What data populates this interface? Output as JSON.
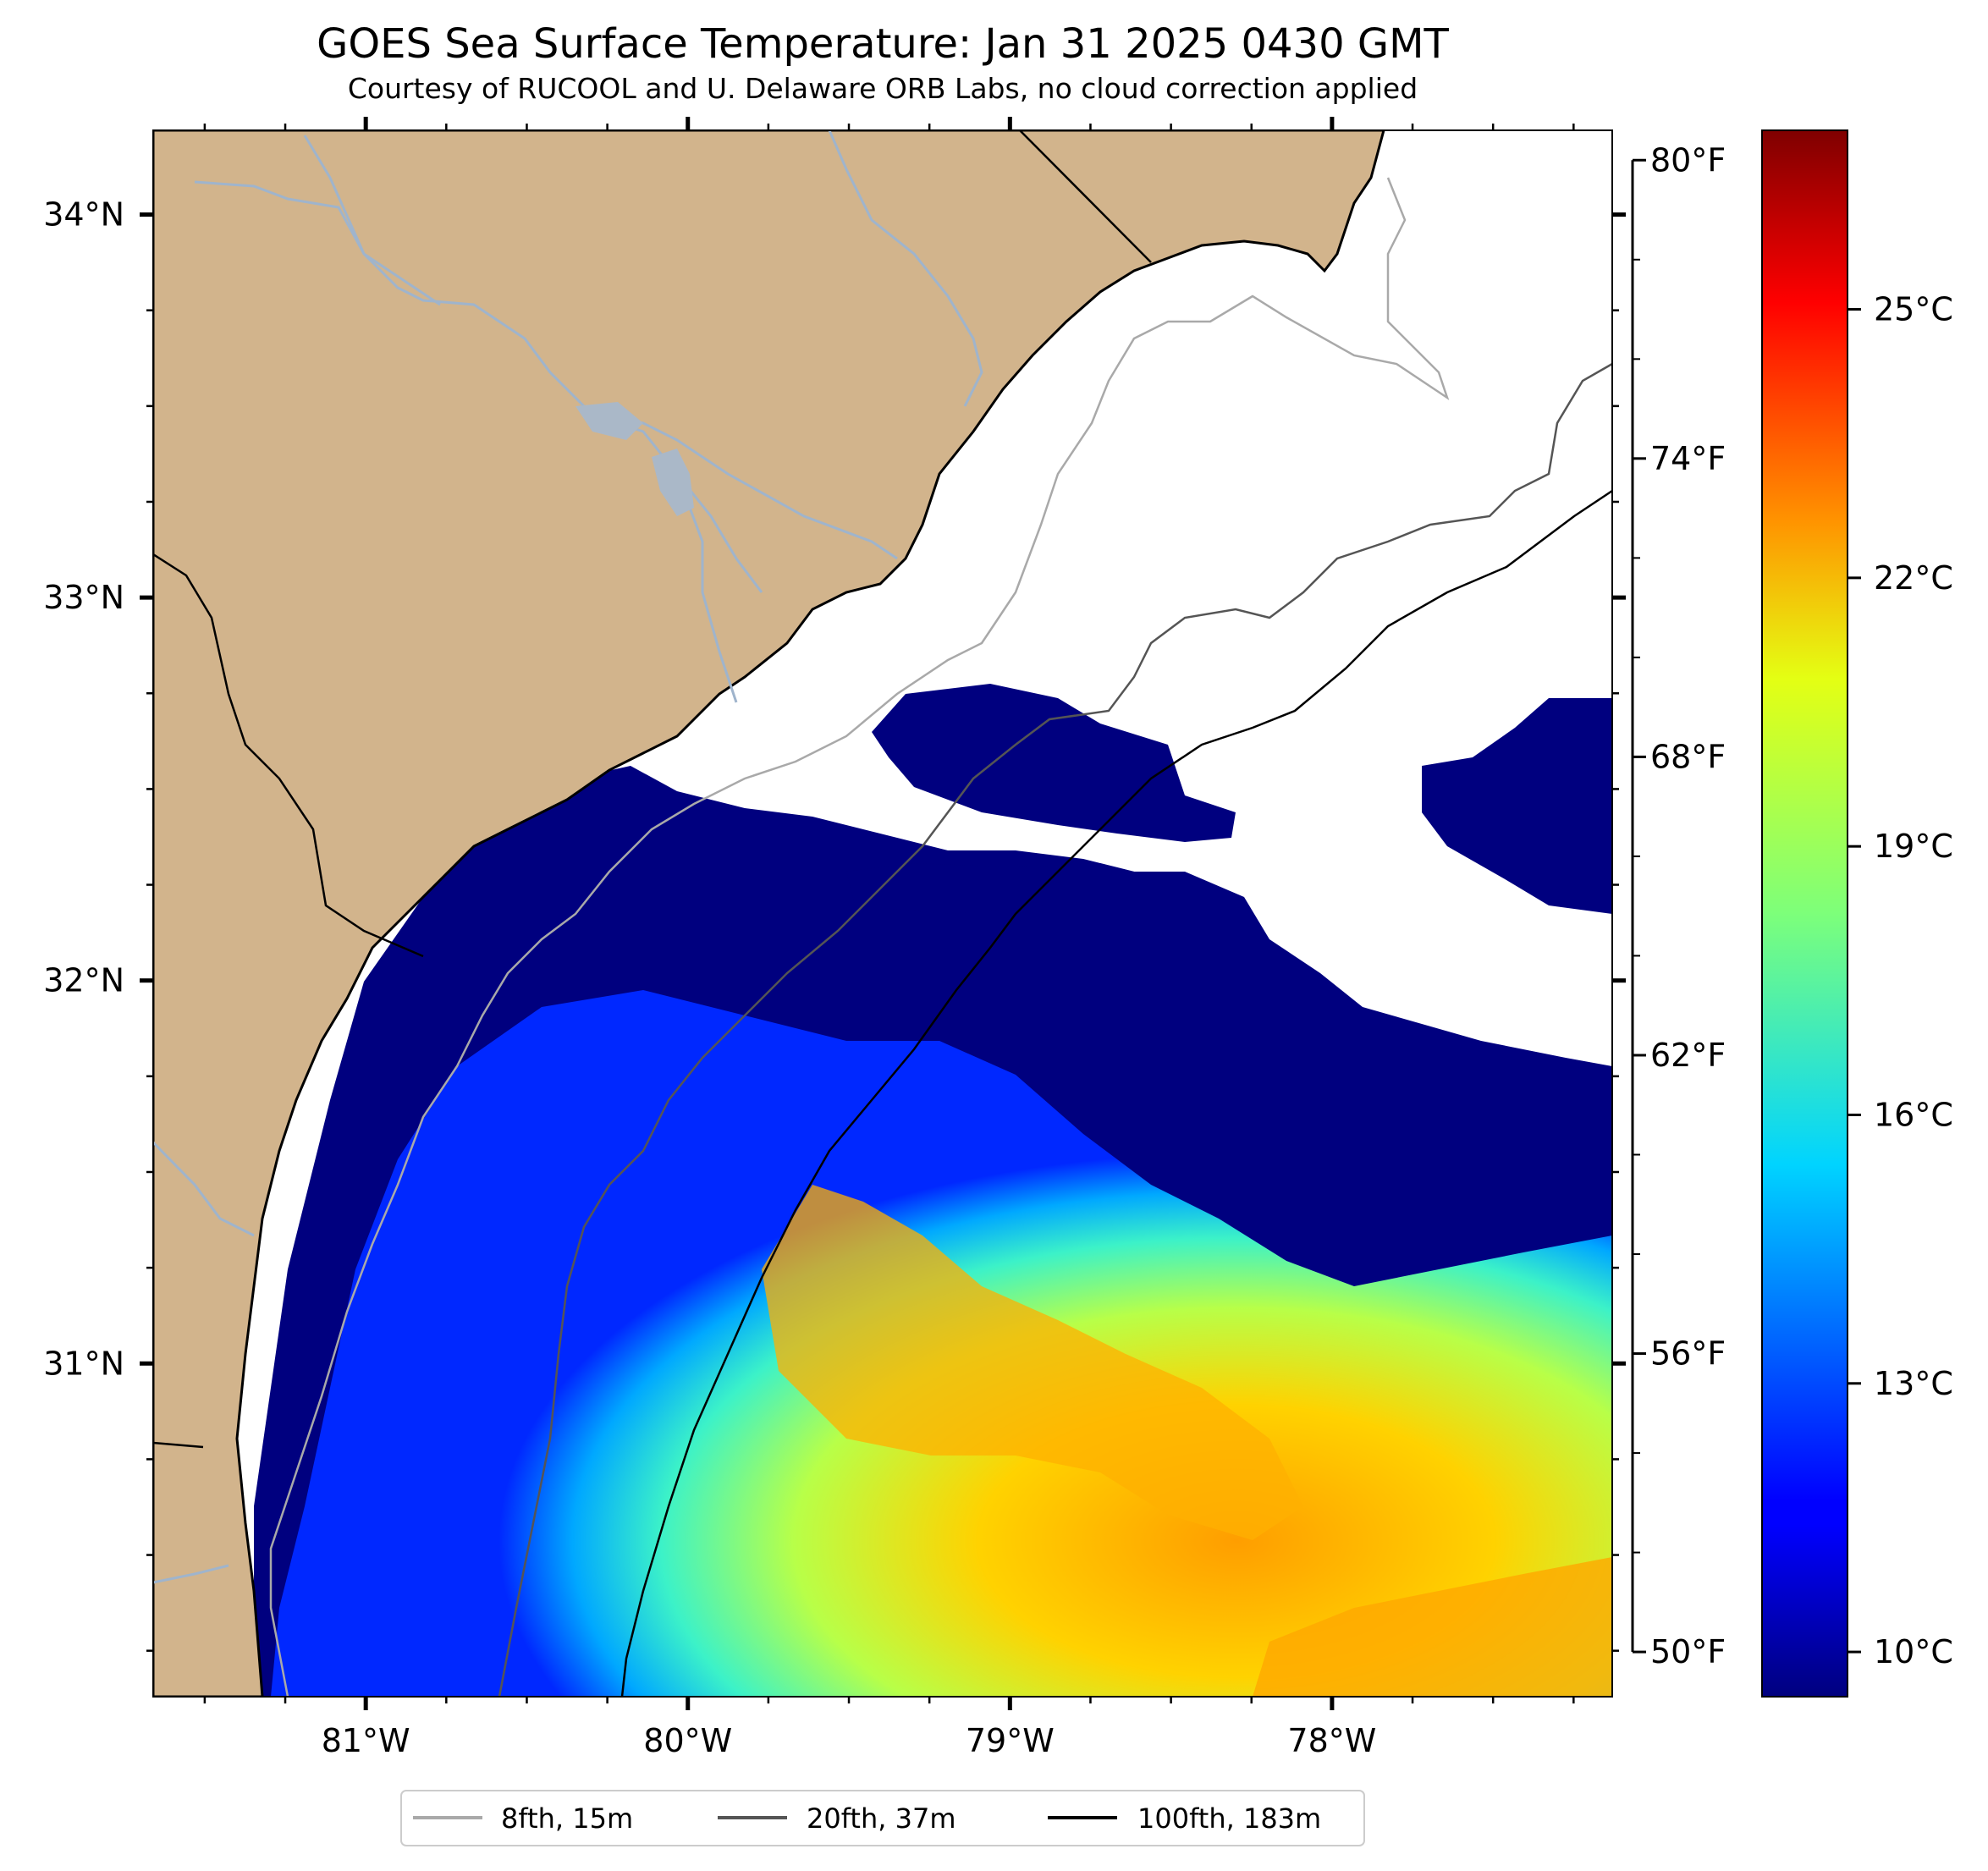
{
  "title": "GOES Sea Surface Temperature: Jan 31 2025 0430 GMT",
  "subtitle": "Courtesy of RUCOOL and U. Delaware ORB Labs, no cloud correction applied",
  "map": {
    "lon_range": [
      -81.66,
      -77.13
    ],
    "lat_range": [
      30.13,
      34.22
    ],
    "lat_ticks": [
      {
        "value": 34,
        "label": "34°N"
      },
      {
        "value": 33,
        "label": "33°N"
      },
      {
        "value": 32,
        "label": "32°N"
      },
      {
        "value": 31,
        "label": "31°N"
      }
    ],
    "lon_ticks": [
      {
        "value": -81,
        "label": "81°W"
      },
      {
        "value": -80,
        "label": "80°W"
      },
      {
        "value": -79,
        "label": "79°W"
      },
      {
        "value": -78,
        "label": "78°W"
      }
    ],
    "land_color": "#d2b48c",
    "water_no_data_color": "#ffffff",
    "river_color": "#9fb4cc",
    "colormap": "jet"
  },
  "fahrenheit_axis": [
    {
      "value": 80,
      "label": "80°F"
    },
    {
      "value": 74,
      "label": "74°F"
    },
    {
      "value": 68,
      "label": "68°F"
    },
    {
      "value": 62,
      "label": "62°F"
    },
    {
      "value": 56,
      "label": "56°F"
    },
    {
      "value": 50,
      "label": "50°F"
    }
  ],
  "colorbar": {
    "range_c": [
      9.5,
      27.0
    ],
    "ticks": [
      {
        "value": 10,
        "label": "10°C"
      },
      {
        "value": 13,
        "label": "13°C"
      },
      {
        "value": 16,
        "label": "16°C"
      },
      {
        "value": 19,
        "label": "19°C"
      },
      {
        "value": 22,
        "label": "22°C"
      },
      {
        "value": 25,
        "label": "25°C"
      }
    ]
  },
  "legend": [
    {
      "label": "8fth, 15m",
      "color": "#a9a9a9"
    },
    {
      "label": "20fth, 37m",
      "color": "#555555"
    },
    {
      "label": "100fth, 183m",
      "color": "#000000"
    }
  ]
}
